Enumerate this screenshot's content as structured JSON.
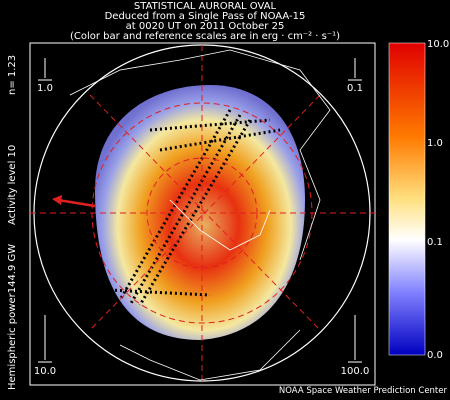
{
  "header": {
    "lines": [
      "STATISTICAL AURORAL OVAL",
      "Deduced from a Single Pass of NOAA-15",
      "at 0020 UT on 2011 October 25",
      "(Color bar and reference scales are in erg · cm⁻² · s⁻¹)"
    ]
  },
  "side_info": {
    "power": "Hemispheric power144.9 GW",
    "activity": "Activity level 10",
    "n": "n= 1.23"
  },
  "reference_scales": {
    "top_left": "1.0",
    "top_right": "0.1",
    "bottom_left": "10.0",
    "bottom_right": "100.0"
  },
  "color_bar": {
    "labels": [
      "10.0",
      "1.0",
      "0.1",
      "0.0"
    ]
  },
  "footer": {
    "credit": "NOAA Space Weather Prediction Center"
  }
}
